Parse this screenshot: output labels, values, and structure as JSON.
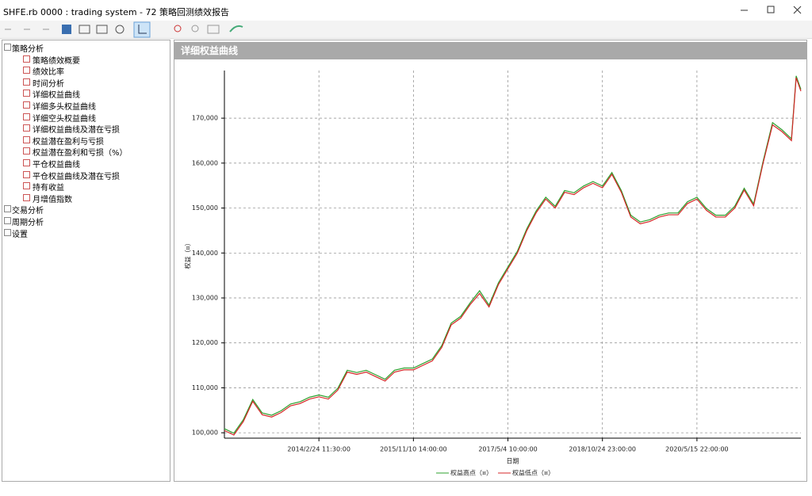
{
  "window": {
    "title": "SHFE.rb 0000 : trading system - 72 策略回测绩效报告"
  },
  "tree": [
    {
      "label": "策略分析",
      "children": [
        "策略绩效概要",
        "绩效比率",
        "时间分析",
        "详细权益曲线",
        "详细多头权益曲线",
        "详细空头权益曲线",
        "详细权益曲线及潜在亏损",
        "权益潜在盈利与亏损",
        "权益潜在盈利和亏损（%）",
        "平仓权益曲线",
        "平仓权益曲线及潜在亏损",
        "持有收益",
        "月增值指数"
      ]
    },
    {
      "label": "交易分析"
    },
    {
      "label": "周期分析"
    },
    {
      "label": "设置"
    }
  ],
  "panel": {
    "title": "详细权益曲线"
  },
  "chart_data": {
    "type": "line",
    "x_label": "日期",
    "y_label": "权益（¤）",
    "x": [
      0,
      2,
      4,
      6,
      8,
      10,
      12,
      14,
      16,
      18,
      20,
      22,
      24,
      26,
      28,
      30,
      32,
      34,
      36,
      38,
      40,
      42,
      44,
      46,
      48,
      50,
      52,
      54,
      56,
      58,
      60,
      62,
      64,
      66,
      68,
      70,
      72,
      74,
      76,
      78,
      80,
      82,
      84,
      86,
      88,
      90,
      92,
      94,
      96,
      98,
      100,
      102,
      104,
      106,
      108,
      110,
      112,
      114,
      116,
      118,
      120,
      121,
      122
    ],
    "xlim": [
      0,
      122
    ],
    "xticks": [
      {
        "value": 20,
        "label": "2014/2/24 11:30:00"
      },
      {
        "value": 40,
        "label": "2015/11/10 14:00:00"
      },
      {
        "value": 60,
        "label": "2017/5/4 10:00:00"
      },
      {
        "value": 80,
        "label": "2018/10/24 23:00:00"
      },
      {
        "value": 100,
        "label": "2020/5/15 22:00:00"
      }
    ],
    "ylim": [
      98800,
      180600
    ],
    "yticks": [
      {
        "value": 100000,
        "label": "100,000"
      },
      {
        "value": 110000,
        "label": "110,000"
      },
      {
        "value": 120000,
        "label": "120,000"
      },
      {
        "value": 130000,
        "label": "130,000"
      },
      {
        "value": 140000,
        "label": "140,000"
      },
      {
        "value": 150000,
        "label": "150,000"
      },
      {
        "value": 160000,
        "label": "160,000"
      },
      {
        "value": 170000,
        "label": "170,000"
      }
    ],
    "grid": true,
    "series": [
      {
        "name": "权益高点（¤）",
        "color": "#2ca02c",
        "values": [
          100900,
          99900,
          102900,
          107400,
          104400,
          103900,
          104900,
          106400,
          106900,
          107900,
          108400,
          107900,
          109900,
          113900,
          113400,
          113900,
          112900,
          111900,
          113900,
          114400,
          114400,
          115400,
          116400,
          119400,
          124400,
          125900,
          128900,
          131600,
          128400,
          133400,
          136900,
          140400,
          145400,
          149400,
          152400,
          150400,
          153900,
          153400,
          154900,
          155900,
          154900,
          157900,
          153900,
          148400,
          146900,
          147400,
          148400,
          148900,
          148900,
          151400,
          152400,
          149900,
          148400,
          148400,
          150400,
          154400,
          150900,
          160400,
          169000,
          167400,
          165400,
          179400,
          176400
        ]
      },
      {
        "name": "权益低点（¤）",
        "color": "#d62728",
        "values": [
          100500,
          99500,
          102500,
          107000,
          104000,
          103500,
          104500,
          106000,
          106500,
          107500,
          108000,
          107500,
          109500,
          113500,
          113000,
          113500,
          112500,
          111500,
          113500,
          114000,
          114000,
          115000,
          116000,
          119000,
          124000,
          125500,
          128500,
          131000,
          128000,
          133000,
          136500,
          140000,
          145000,
          149000,
          152000,
          150000,
          153500,
          153000,
          154500,
          155500,
          154500,
          157500,
          153500,
          148000,
          146500,
          147000,
          148000,
          148500,
          148500,
          151000,
          152000,
          149500,
          148000,
          148000,
          150000,
          154000,
          150500,
          160000,
          168500,
          167000,
          165000,
          179000,
          176000
        ]
      }
    ]
  }
}
